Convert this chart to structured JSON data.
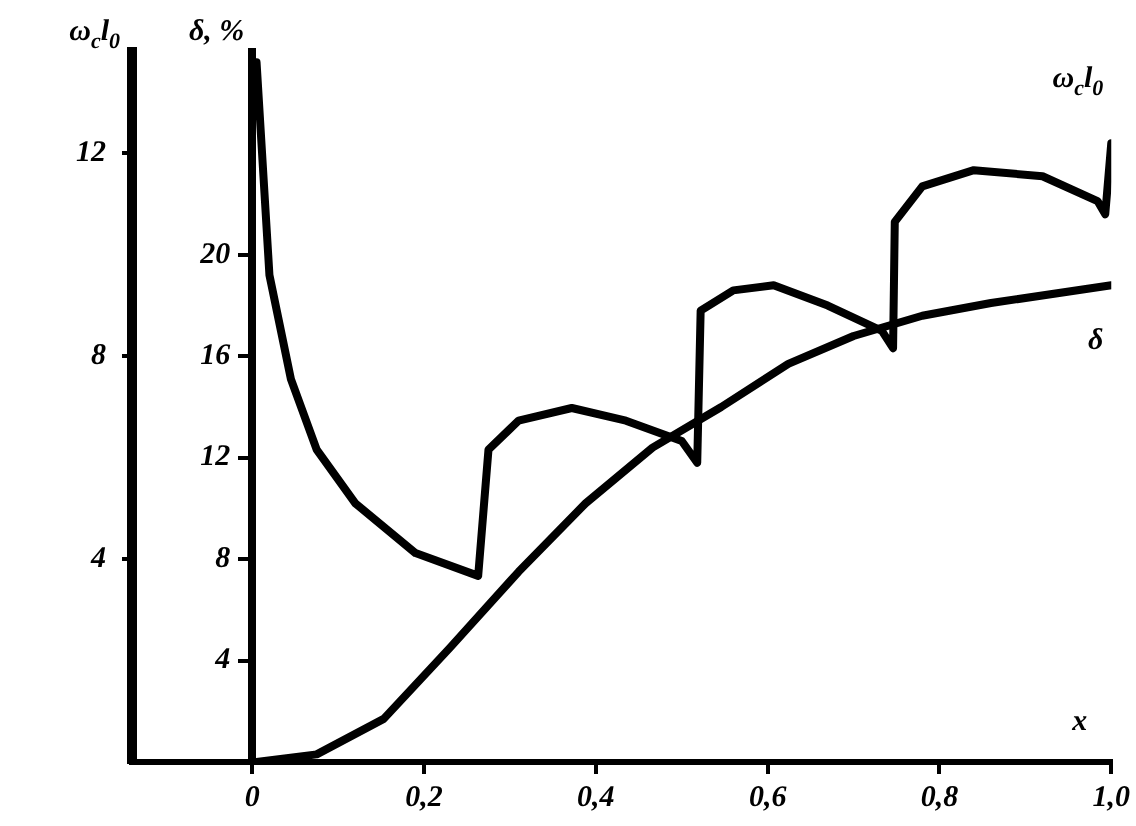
{
  "chart_data": {
    "type": "line",
    "xlabel": "x",
    "ylabel": "ω$_{c}$l$_{0}$",
    "y2label": "δ, %",
    "xlim": [
      -0.14,
      1.0
    ],
    "xticks": [
      {
        "value": 0,
        "label": "0"
      },
      {
        "value": 0.2,
        "label": "0,2"
      },
      {
        "value": 0.4,
        "label": "0,4"
      },
      {
        "value": 0.6,
        "label": "0,6"
      },
      {
        "value": 0.8,
        "label": "0,8"
      },
      {
        "value": 1.0,
        "label": "1,0"
      }
    ],
    "ylim": [
      0,
      14
    ],
    "yticks": [
      4,
      8,
      12
    ],
    "y2lim": [
      0,
      28
    ],
    "y2ticks": [
      4,
      8,
      12,
      16,
      20
    ],
    "grid": false,
    "series": [
      {
        "name": "ω$_{c}$l$_{0}$",
        "color": "#000000",
        "x": [
          0.005,
          0.02,
          0.045,
          0.075,
          0.12,
          0.19,
          0.263,
          0.275,
          0.31,
          0.372,
          0.435,
          0.5,
          0.518,
          0.522,
          0.56,
          0.607,
          0.67,
          0.733,
          0.746,
          0.748,
          0.78,
          0.84,
          0.92,
          0.984,
          0.993,
          1.0
        ],
        "values": [
          13.8,
          9.6,
          7.55,
          6.16,
          5.1,
          4.12,
          3.67,
          6.16,
          6.73,
          6.98,
          6.73,
          6.33,
          5.9,
          8.9,
          9.3,
          9.4,
          9.0,
          8.5,
          8.16,
          10.65,
          11.35,
          11.67,
          11.55,
          11.06,
          10.8,
          12.2
        ]
      },
      {
        "name": "δ",
        "color": "#000000",
        "axis": "y2",
        "x": [
          0.005,
          0.075,
          0.153,
          0.23,
          0.31,
          0.388,
          0.466,
          0.546,
          0.624,
          0.7,
          0.78,
          0.86,
          1.0
        ],
        "values": [
          0,
          0.3,
          1.7,
          4.5,
          7.5,
          10.2,
          12.4,
          14.0,
          15.7,
          16.8,
          17.6,
          18.1,
          18.8
        ]
      }
    ]
  }
}
